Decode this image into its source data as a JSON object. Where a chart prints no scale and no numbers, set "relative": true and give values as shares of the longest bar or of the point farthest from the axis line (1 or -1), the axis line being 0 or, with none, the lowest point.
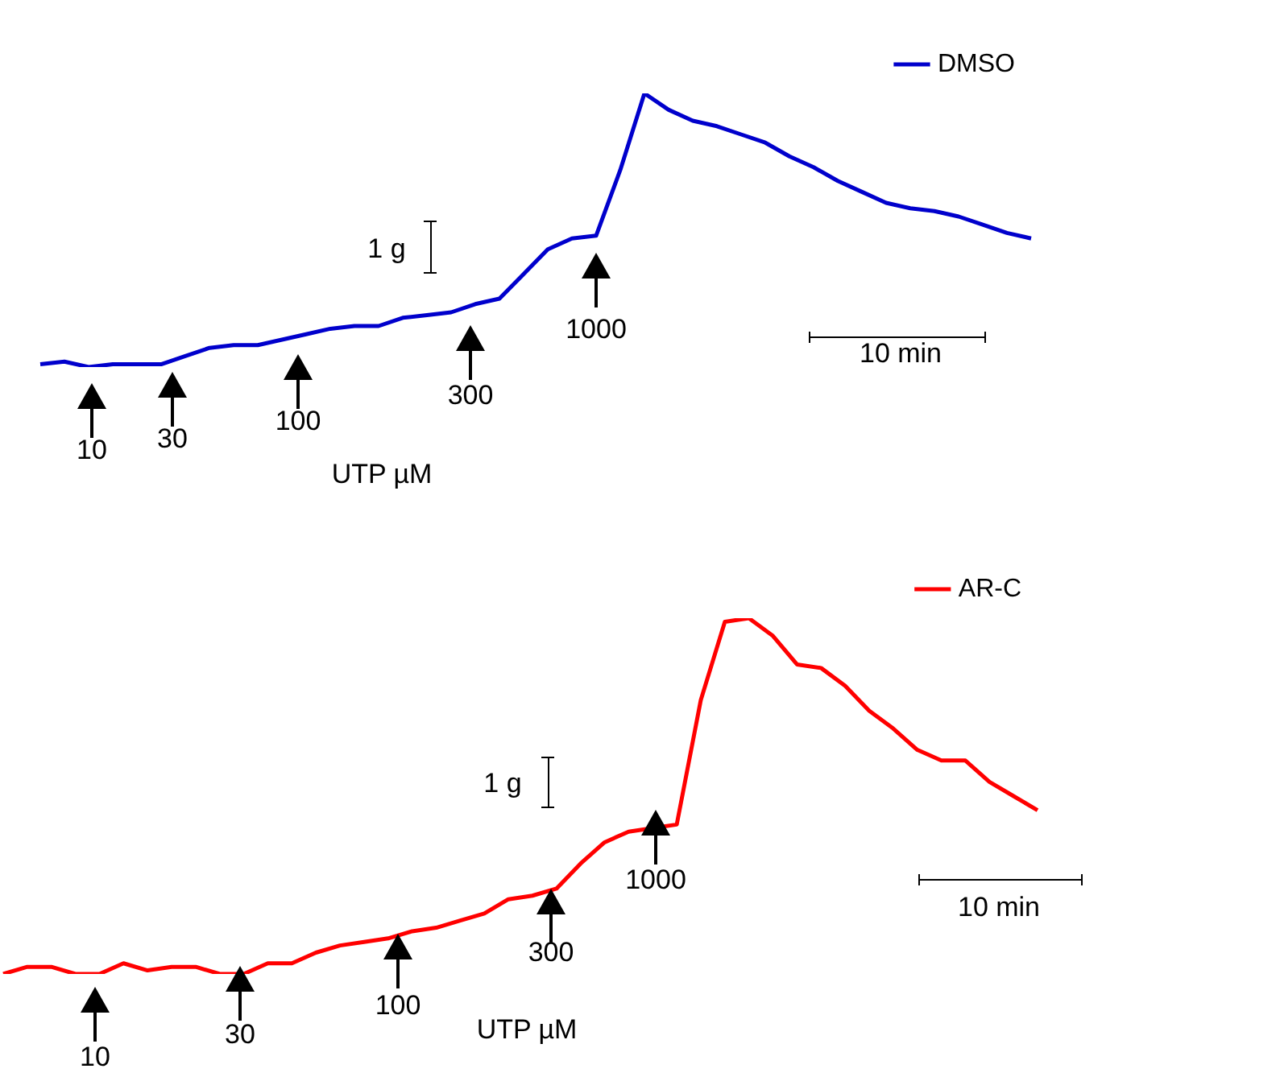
{
  "chart_data": [
    {
      "type": "line",
      "relative": true,
      "legend": "top right",
      "categories": [
        null,
        null,
        null,
        null,
        null,
        null,
        null,
        null,
        null,
        null,
        null,
        null,
        null,
        null,
        null,
        null,
        null,
        null,
        null,
        null,
        null,
        null,
        null,
        null,
        null,
        null,
        null,
        null,
        null,
        null,
        null,
        null,
        null,
        null,
        null,
        null,
        null,
        null,
        null,
        null,
        null,
        null
      ],
      "series": [
        {
          "name": "DMSO",
          "color": "#0000cc",
          "values": [
            0.01,
            0.02,
            0,
            0.01,
            0.01,
            0.01,
            0.04,
            0.07,
            0.08,
            0.08,
            0.1,
            0.12,
            0.14,
            0.15,
            0.15,
            0.18,
            0.19,
            0.2,
            0.23,
            0.25,
            0.34,
            0.43,
            0.47,
            0.48,
            0.72,
            1,
            0.94,
            0.9,
            0.88,
            0.85,
            0.82,
            0.77,
            0.73,
            0.68,
            0.64,
            0.6,
            0.58,
            0.57,
            0.55,
            0.52,
            0.49,
            0.47
          ]
        }
      ],
      "annotations": [
        "10",
        "30",
        "100",
        "300",
        "1000",
        "UTP µM",
        "1 g",
        "10 min"
      ]
    },
    {
      "type": "line",
      "relative": true,
      "legend": "top right",
      "categories": [
        null,
        null,
        null,
        null,
        null,
        null,
        null,
        null,
        null,
        null,
        null,
        null,
        null,
        null,
        null,
        null,
        null,
        null,
        null,
        null,
        null,
        null,
        null,
        null,
        null,
        null,
        null,
        null,
        null,
        null,
        null,
        null,
        null,
        null,
        null,
        null,
        null,
        null,
        null,
        null,
        null,
        null,
        null,
        null
      ],
      "series": [
        {
          "name": "AR-C",
          "color": "#ff0000",
          "values": [
            0,
            0.02,
            0.02,
            0,
            0,
            0.03,
            0.01,
            0.02,
            0.02,
            0,
            0,
            0.03,
            0.03,
            0.06,
            0.08,
            0.09,
            0.1,
            0.12,
            0.13,
            0.15,
            0.17,
            0.21,
            0.22,
            0.24,
            0.31,
            0.37,
            0.4,
            0.41,
            0.42,
            0.77,
            0.99,
            1,
            0.95,
            0.87,
            0.86,
            0.81,
            0.74,
            0.69,
            0.63,
            0.6,
            0.6,
            0.54,
            0.5,
            0.46
          ]
        }
      ],
      "annotations": [
        "10",
        "30",
        "100",
        "300",
        "1000",
        "UTP µM",
        "1 g",
        "10 min"
      ]
    }
  ]
}
